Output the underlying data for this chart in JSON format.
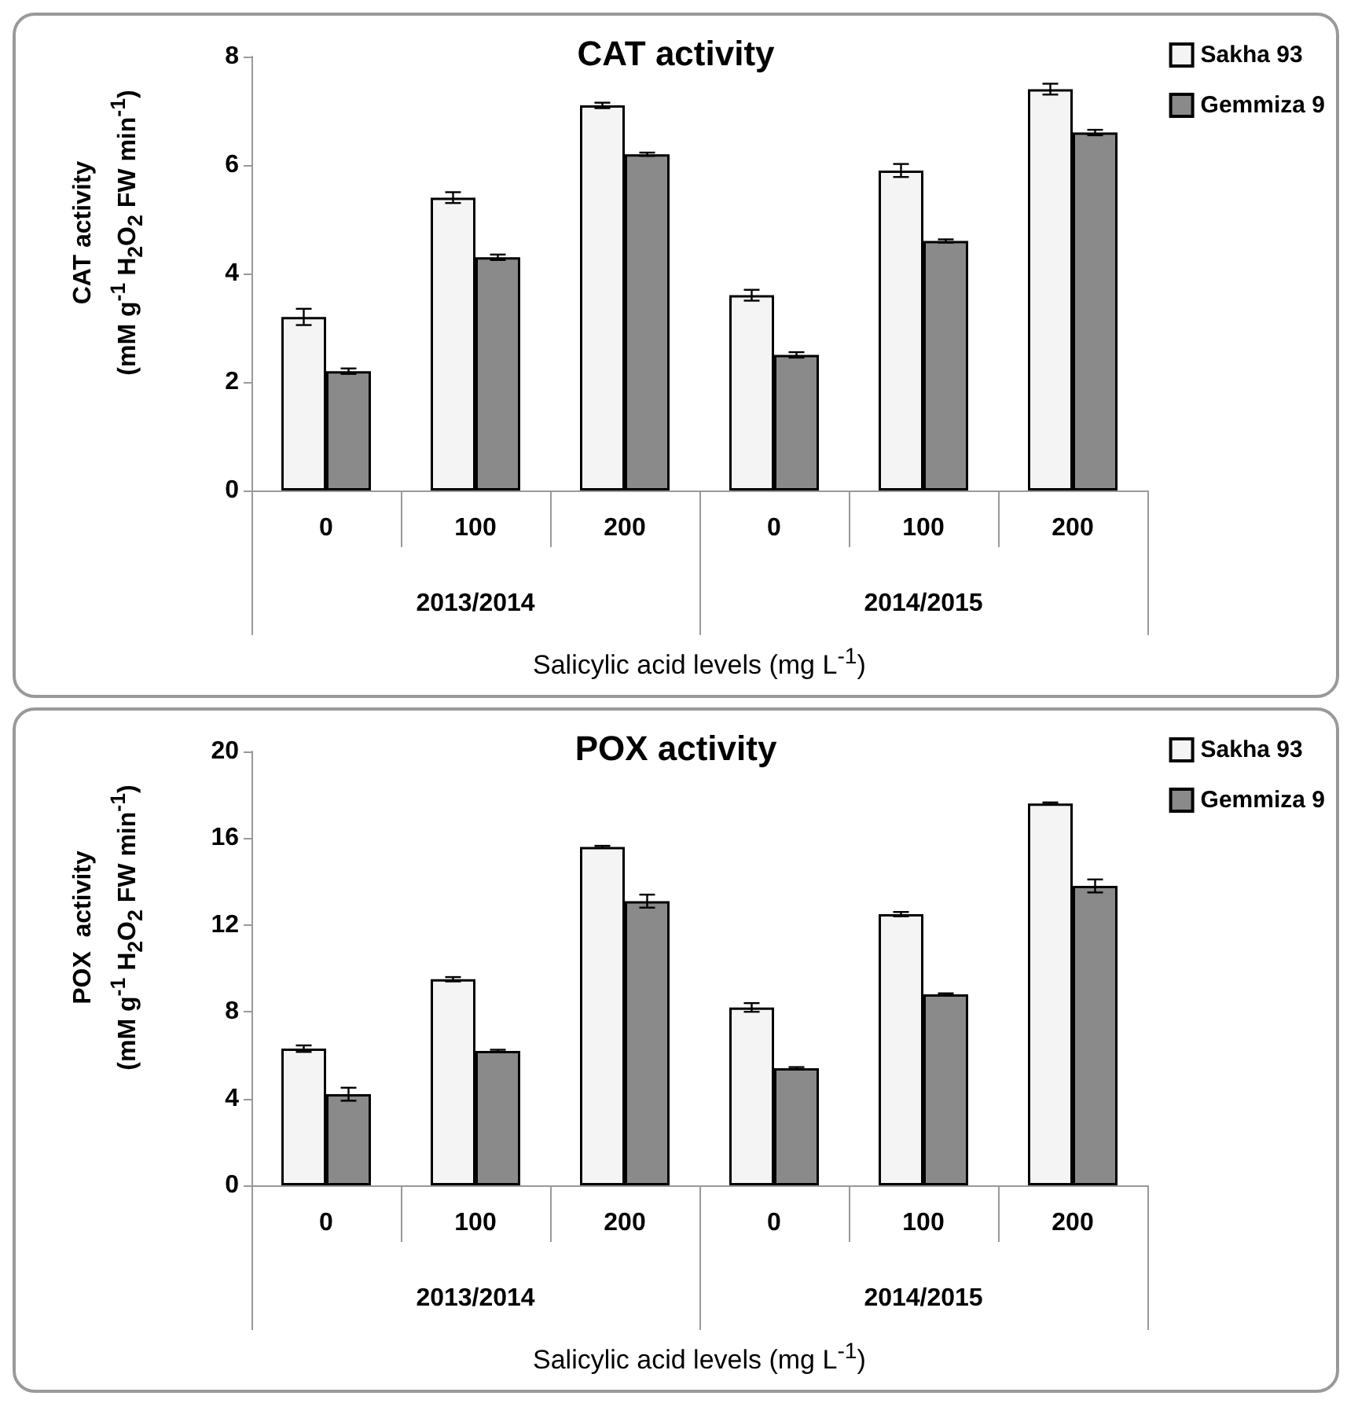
{
  "chart_data": [
    {
      "type": "bar",
      "title": "CAT activity",
      "xlabel": "Salicylic acid levels (mg L$^{-1}$)",
      "ylabel": "CAT activity\n(mM g$^{-1}$ H$_{2}$O$_{2}$ FW min$^{-1}$)",
      "categories": [
        "0",
        "100",
        "200",
        "0",
        "100",
        "200"
      ],
      "annotations": [
        "2013/2014",
        "2014/2015"
      ],
      "series": [
        {
          "name": "Sakha 93",
          "color": "#f4f4f4",
          "values": [
            3.2,
            5.4,
            7.1,
            3.6,
            5.9,
            7.4
          ],
          "errors": [
            0.15,
            0.1,
            0.05,
            0.1,
            0.12,
            0.1
          ]
        },
        {
          "name": "Gemmiza 9",
          "color": "#8a8a8a",
          "values": [
            2.2,
            4.3,
            6.2,
            2.5,
            4.6,
            6.6
          ],
          "errors": [
            0.05,
            0.05,
            0.03,
            0.05,
            0.03,
            0.05
          ]
        }
      ],
      "ylim": [
        0,
        8
      ],
      "yticks": [
        0,
        2,
        4,
        6,
        8
      ],
      "legend": "top right"
    },
    {
      "type": "bar",
      "title": "POX activity",
      "xlabel": "Salicylic acid levels (mg L$^{-1}$)",
      "ylabel": "POX  activity\n(mM g$^{-1}$ H$_{2}$O$_{2}$ FW min$^{-1}$)",
      "categories": [
        "0",
        "100",
        "200",
        "0",
        "100",
        "200"
      ],
      "annotations": [
        "2013/2014",
        "2014/2015"
      ],
      "series": [
        {
          "name": "Sakha 93",
          "color": "#f4f4f4",
          "values": [
            6.3,
            9.5,
            15.6,
            8.2,
            12.5,
            17.6
          ],
          "errors": [
            0.15,
            0.1,
            0.05,
            0.2,
            0.1,
            0.05
          ]
        },
        {
          "name": "Gemmiza 9",
          "color": "#8a8a8a",
          "values": [
            4.2,
            6.2,
            13.1,
            5.4,
            8.8,
            13.8
          ],
          "errors": [
            0.3,
            0.05,
            0.3,
            0.05,
            0.05,
            0.3
          ]
        }
      ],
      "ylim": [
        0,
        20
      ],
      "yticks": [
        0,
        4,
        8,
        12,
        16,
        20
      ],
      "legend": "top right"
    }
  ]
}
